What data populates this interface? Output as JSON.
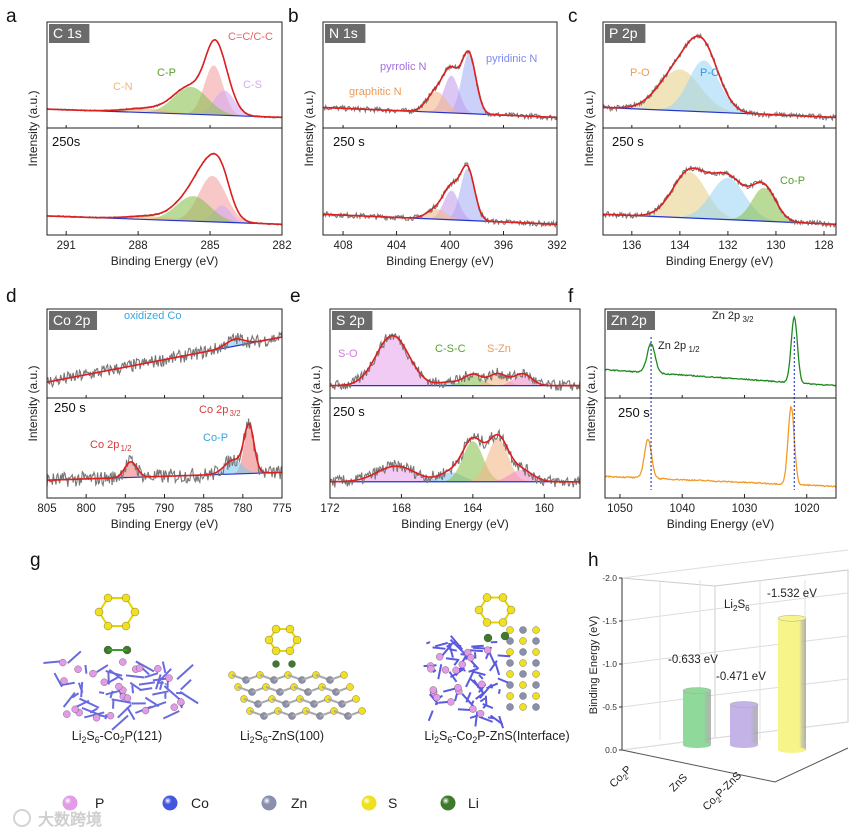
{
  "panel_letters": [
    "a",
    "b",
    "c",
    "d",
    "e",
    "f",
    "g",
    "h"
  ],
  "common": {
    "xlabel": "Binding Energy (eV)",
    "ylabel": "Intensity (a.u.)"
  },
  "chart_data": [
    {
      "panel": "a",
      "type": "line",
      "title": "C 1s",
      "xlim": [
        291.8,
        282
      ],
      "xticks": [
        291,
        288,
        285,
        282
      ],
      "noise": 0.006,
      "subplots": [
        {
          "label": "",
          "baseline": [
            0.1,
            0.0
          ],
          "peaks": [
            {
              "label": "C=C/C-C",
              "center": 284.85,
              "height": 0.6,
              "width": 0.55,
              "color": "#f4a3a3"
            },
            {
              "label": "C-S",
              "center": 284.4,
              "height": 0.3,
              "width": 0.6,
              "color": "#d6a8f2"
            },
            {
              "label": "C-P",
              "center": 285.8,
              "height": 0.33,
              "width": 1.0,
              "color": "#8cc152"
            },
            {
              "label": "C-N",
              "center": 287.6,
              "height": 0.05,
              "width": 1.3,
              "color": "#f0b57a"
            }
          ]
        },
        {
          "label": "250s",
          "baseline": [
            0.1,
            0.0
          ],
          "peaks": [
            {
              "label": "",
              "center": 284.9,
              "height": 0.55,
              "width": 0.8,
              "color": "#f4a3a3"
            },
            {
              "label": "",
              "center": 284.5,
              "height": 0.2,
              "width": 0.5,
              "color": "#d6a8f2"
            },
            {
              "label": "",
              "center": 285.7,
              "height": 0.3,
              "width": 1.0,
              "color": "#8cc152"
            },
            {
              "label": "",
              "center": 287.5,
              "height": 0.04,
              "width": 1.3,
              "color": "#f0b57a"
            }
          ]
        }
      ]
    },
    {
      "panel": "b",
      "type": "line",
      "title": "N 1s",
      "xlim": [
        409.5,
        392
      ],
      "xticks": [
        408,
        404,
        400,
        396,
        392
      ],
      "noise": 0.02,
      "subplots": [
        {
          "label": "",
          "baseline": [
            0.12,
            0.0
          ],
          "peaks": [
            {
              "label": "pyridinic N",
              "center": 398.6,
              "height": 0.72,
              "width": 0.75,
              "color": "#a9b2f5"
            },
            {
              "label": "pyrrolic N",
              "center": 399.9,
              "height": 0.45,
              "width": 0.8,
              "color": "#c3a0ec"
            },
            {
              "label": "graphitic N",
              "center": 401.0,
              "height": 0.25,
              "width": 1.0,
              "color": "#f3b98a"
            }
          ]
        },
        {
          "label": "250 s",
          "baseline": [
            0.12,
            0.0
          ],
          "peaks": [
            {
              "label": "",
              "center": 398.7,
              "height": 0.62,
              "width": 0.75,
              "color": "#a9b2f5"
            },
            {
              "label": "",
              "center": 399.9,
              "height": 0.35,
              "width": 0.8,
              "color": "#c3a0ec"
            },
            {
              "label": "",
              "center": 401.0,
              "height": 0.12,
              "width": 1.0,
              "color": "#f3b98a"
            }
          ]
        }
      ]
    },
    {
      "panel": "c",
      "type": "line",
      "title": "P 2p",
      "xlim": [
        137.2,
        127.5
      ],
      "xticks": [
        136,
        134,
        132,
        130,
        128
      ],
      "noise": 0.02,
      "subplots": [
        {
          "label": "",
          "baseline": [
            0.12,
            0.0
          ],
          "peaks": [
            {
              "label": "P-O",
              "center": 134.0,
              "height": 0.5,
              "width": 1.2,
              "color": "#e8d08c"
            },
            {
              "label": "P-C",
              "center": 133.0,
              "height": 0.62,
              "width": 0.9,
              "color": "#9fd7f5"
            }
          ]
        },
        {
          "label": "250 s",
          "baseline": [
            0.12,
            0.0
          ],
          "peaks": [
            {
              "label": "",
              "center": 133.6,
              "height": 0.55,
              "width": 1.0,
              "color": "#e8d08c"
            },
            {
              "label": "",
              "center": 132.0,
              "height": 0.5,
              "width": 1.0,
              "color": "#9fd7f5"
            },
            {
              "label": "Co-P",
              "center": 130.5,
              "height": 0.4,
              "width": 0.7,
              "color": "#8cc152"
            }
          ]
        }
      ]
    },
    {
      "panel": "d",
      "type": "line",
      "title": "Co 2p",
      "xlim": [
        805,
        775
      ],
      "xticks": [
        805,
        800,
        795,
        790,
        785,
        780,
        775
      ],
      "noise": 0.06,
      "subplots": [
        {
          "label": "",
          "baseline": [
            0.1,
            0.75
          ],
          "peaks": [
            {
              "label": "oxidized Co",
              "center": 781,
              "height": 0.1,
              "width": 1.6,
              "color": "#7ec8f0"
            }
          ]
        },
        {
          "label": "250 s",
          "baseline": [
            0.1,
            0.2
          ],
          "peaks": [
            {
              "label": "Co 2p",
              "sub": "3/2",
              "center": 779.2,
              "height": 0.6,
              "width": 0.9,
              "color": "#f08080"
            },
            {
              "label": "Co-P",
              "center": 781.2,
              "height": 0.18,
              "width": 1.6,
              "color": "#7ec8f0"
            },
            {
              "label": "Co 2p",
              "sub": "1/2",
              "center": 794.3,
              "height": 0.2,
              "width": 1.1,
              "color": "#f08080"
            }
          ]
        }
      ]
    },
    {
      "panel": "e",
      "type": "line",
      "title": "S 2p",
      "xlim": [
        172,
        158
      ],
      "xticks": [
        172,
        168,
        164,
        160
      ],
      "noise": 0.05,
      "subplots": [
        {
          "label": "",
          "baseline": [
            0.05,
            0.05
          ],
          "peaks": [
            {
              "label": "S-O",
              "center": 168.5,
              "height": 0.72,
              "width": 1.3,
              "color": "#e8a8ec"
            },
            {
              "label": "",
              "center": 165.3,
              "height": 0.05,
              "width": 0.8,
              "color": "#7ec8f0"
            },
            {
              "label": "C-S-C",
              "center": 164.0,
              "height": 0.16,
              "width": 0.7,
              "color": "#8cc152"
            },
            {
              "label": "S-Zn",
              "center": 162.6,
              "height": 0.17,
              "width": 0.7,
              "color": "#f3b98a"
            },
            {
              "label": "",
              "center": 161.2,
              "height": 0.17,
              "width": 0.7,
              "color": "#f08fc8"
            }
          ]
        },
        {
          "label": "250 s",
          "baseline": [
            0.08,
            0.08
          ],
          "peaks": [
            {
              "label": "",
              "center": 168.3,
              "height": 0.2,
              "width": 1.5,
              "color": "#e8a8ec"
            },
            {
              "label": "",
              "center": 165.2,
              "height": 0.12,
              "width": 0.9,
              "color": "#7ec8f0"
            },
            {
              "label": "",
              "center": 164.0,
              "height": 0.52,
              "width": 0.8,
              "color": "#8cc152"
            },
            {
              "label": "",
              "center": 162.6,
              "height": 0.56,
              "width": 0.8,
              "color": "#f3b98a"
            },
            {
              "label": "",
              "center": 161.3,
              "height": 0.15,
              "width": 0.9,
              "color": "#f08fc8"
            }
          ]
        }
      ]
    },
    {
      "panel": "f",
      "type": "line",
      "title": "Zn 2p",
      "xlim": [
        1052.4,
        1015.3
      ],
      "xticks": [
        1050,
        1040,
        1030,
        1020
      ],
      "noise": 0.008,
      "lines_only": true,
      "reference_lines": [
        1045,
        1022
      ],
      "subplots": [
        {
          "label": "",
          "line_color": "#1e8a1e",
          "baseline": [
            0.28,
            0.05
          ],
          "peaks": [
            {
              "label": "Zn 2p",
              "sub": "1/2",
              "center": 1045,
              "height": 0.42,
              "width": 0.9
            },
            {
              "label": "Zn 2p",
              "sub": "3/2",
              "center": 1022,
              "height": 0.95,
              "width": 0.7
            }
          ]
        },
        {
          "label": "250 s",
          "line_color": "#f39a26",
          "baseline": [
            0.15,
            0.02
          ],
          "peaks": [
            {
              "label": "",
              "center": 1045.5,
              "height": 0.5,
              "width": 0.8
            },
            {
              "label": "",
              "center": 1022.5,
              "height": 1.0,
              "width": 0.7
            }
          ]
        }
      ]
    },
    {
      "panel": "h",
      "type": "bar",
      "title": "Li2S6",
      "ylabel": "Binding Energy (eV)",
      "ylim": [
        0,
        -2.0
      ],
      "yticks": [
        "0.0",
        "-0.5",
        "-1.0",
        "-1.5",
        "-2.0"
      ],
      "ytick_values": [
        0,
        -0.5,
        -1.0,
        -1.5,
        -2.0
      ],
      "categories": [
        "Co2P",
        "ZnS",
        "Co2P-ZnS"
      ],
      "values": [
        -0.633,
        -0.471,
        -1.532
      ],
      "value_labels": [
        "-0.633 eV",
        "-0.471 eV",
        "-1.532 eV"
      ],
      "colors": [
        "#8fd99a",
        "#c3b3e6",
        "#f7f58a"
      ]
    }
  ],
  "structures": {
    "captions": [
      "Li2S6-Co2P(121)",
      "Li2S6-ZnS(100)",
      "Li2S6-Co2P-ZnS(Interface)"
    ]
  },
  "legend": [
    {
      "label": "P",
      "color": "#e29be6"
    },
    {
      "label": "Co",
      "color": "#4455e0"
    },
    {
      "label": "Zn",
      "color": "#8a8fae"
    },
    {
      "label": "S",
      "color": "#f0e020"
    },
    {
      "label": "Li",
      "color": "#3f7a2c"
    }
  ],
  "watermark": "大数跨境"
}
